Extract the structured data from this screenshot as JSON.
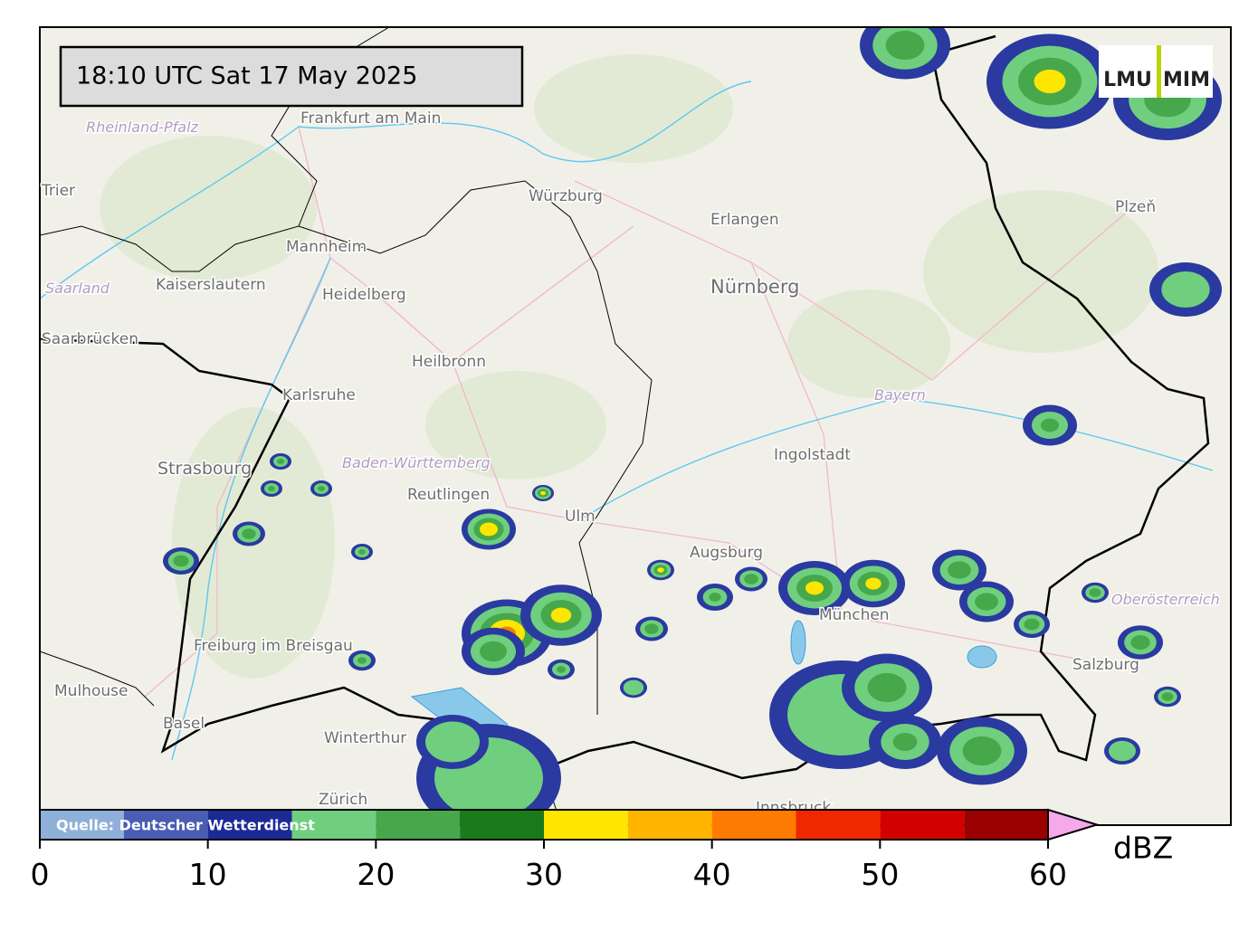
{
  "header": {
    "timestamp": "18:10 UTC  Sat 17 May 2025",
    "logo": [
      "LMU",
      "MIM"
    ]
  },
  "map": {
    "labels": [
      "Frankfurt am Main",
      "Trier",
      "Rheinland-Pfalz",
      "Mannheim",
      "Kaiserslautern",
      "Saarland",
      "Heidelberg",
      "Saarbrücken",
      "Würzburg",
      "Erlangen",
      "Nürnberg",
      "Heilbronn",
      "Karlsruhe",
      "Baden-Württemberg",
      "Strasbourg",
      "Reutlingen",
      "Ulm",
      "Ingolstadt",
      "Bayern",
      "Augsburg",
      "München",
      "Freiburg im Breisgau",
      "Mulhouse",
      "Basel",
      "Winterthur",
      "Zürich",
      "Plzeň",
      "Salzburg",
      "Oberösterreich",
      "Innsbruck"
    ]
  },
  "colorbar": {
    "source": "Quelle: Deutscher Wetterdienst",
    "unit": "dBZ",
    "bounds": [
      0,
      5,
      10,
      15,
      20,
      25,
      30,
      35,
      40,
      45,
      50,
      55,
      60
    ],
    "colors": [
      "#8fb0d8",
      "#4a5cb4",
      "#1c2a96",
      "#6fcf7f",
      "#46a84b",
      "#1a7a1a",
      "#ffe600",
      "#ffb400",
      "#ff7a00",
      "#f02800",
      "#d20000",
      "#9a0000"
    ],
    "extend_color": "#f5a8ea",
    "ticks": [
      0,
      10,
      20,
      30,
      40,
      50,
      60
    ]
  }
}
